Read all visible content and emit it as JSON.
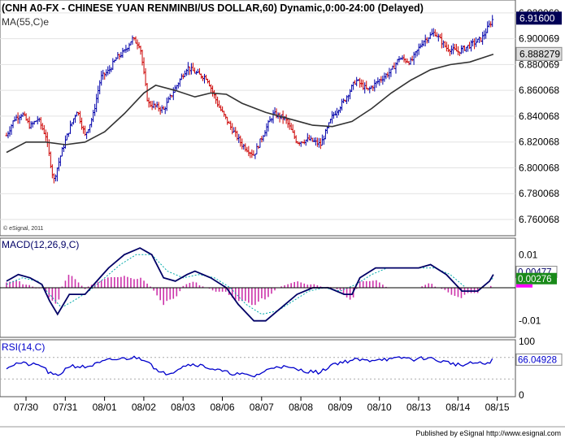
{
  "header": {
    "title": "(CNH A0-FX - CHINESE YUAN RENMINBI/US DOLLAR,60) Dynamic,0:00-24:00 (Delayed)",
    "ma_label": "MA(55,C)e",
    "copyright": "© eSignal, 2011"
  },
  "footer": {
    "published": "Published by eSignal http://www.esignal.com"
  },
  "colors": {
    "up_bar": "#0000aa",
    "down_bar": "#cc0000",
    "ma_line": "#333333",
    "macd_line": "#000066",
    "signal_line": "#00aaaa",
    "histogram": "#cc33aa",
    "rsi_line": "#0000cc",
    "last_price_box": "#000055",
    "macd_value_box": "#1a8a1a",
    "signal_marker": "#ff00ff"
  },
  "chart_data": [
    {
      "type": "candlestick",
      "panel": "price",
      "series_name": "CNH A0-FX",
      "x_ticks": [
        "07/30",
        "07/31",
        "08/01",
        "08/02",
        "08/03",
        "08/06",
        "08/07",
        "08/08",
        "08/09",
        "08/10",
        "08/13",
        "08/14",
        "08/15"
      ],
      "ylim": [
        6.75,
        6.925
      ],
      "y_ticks": [
        "6.760068",
        "6.780068",
        "6.800068",
        "6.820068",
        "6.840068",
        "6.860068",
        "6.880069",
        "6.900069",
        "6.920069"
      ],
      "last_price": "6.91600",
      "ma_value": "6.888279",
      "close_path": [
        [
          0,
          6.825
        ],
        [
          0.2,
          6.838
        ],
        [
          0.4,
          6.842
        ],
        [
          0.6,
          6.832
        ],
        [
          0.8,
          6.838
        ],
        [
          1.0,
          6.825
        ],
        [
          1.2,
          6.79
        ],
        [
          1.4,
          6.812
        ],
        [
          1.6,
          6.83
        ],
        [
          1.8,
          6.845
        ],
        [
          2.0,
          6.825
        ],
        [
          2.2,
          6.84
        ],
        [
          2.4,
          6.87
        ],
        [
          2.6,
          6.875
        ],
        [
          2.8,
          6.885
        ],
        [
          3.0,
          6.89
        ],
        [
          3.2,
          6.9
        ],
        [
          3.4,
          6.895
        ],
        [
          3.6,
          6.85
        ],
        [
          4.0,
          6.845
        ],
        [
          4.3,
          6.862
        ],
        [
          4.6,
          6.878
        ],
        [
          4.9,
          6.872
        ],
        [
          5.1,
          6.87
        ],
        [
          5.4,
          6.848
        ],
        [
          5.7,
          6.832
        ],
        [
          6.0,
          6.818
        ],
        [
          6.3,
          6.81
        ],
        [
          6.6,
          6.83
        ],
        [
          6.8,
          6.842
        ],
        [
          7.1,
          6.838
        ],
        [
          7.4,
          6.82
        ],
        [
          7.7,
          6.822
        ],
        [
          8.0,
          6.818
        ],
        [
          8.3,
          6.84
        ],
        [
          8.6,
          6.852
        ],
        [
          8.9,
          6.868
        ],
        [
          9.2,
          6.86
        ],
        [
          9.5,
          6.868
        ],
        [
          9.8,
          6.875
        ],
        [
          10.0,
          6.885
        ],
        [
          10.3,
          6.882
        ],
        [
          10.6,
          6.898
        ],
        [
          10.9,
          6.905
        ],
        [
          11.2,
          6.893
        ],
        [
          11.5,
          6.89
        ],
        [
          11.8,
          6.895
        ],
        [
          12.1,
          6.9
        ],
        [
          12.4,
          6.916
        ]
      ],
      "ma_path": [
        [
          0,
          6.812
        ],
        [
          0.5,
          6.82
        ],
        [
          1.0,
          6.82
        ],
        [
          1.5,
          6.818
        ],
        [
          2.0,
          6.82
        ],
        [
          2.5,
          6.828
        ],
        [
          3.0,
          6.842
        ],
        [
          3.5,
          6.858
        ],
        [
          3.8,
          6.864
        ],
        [
          4.3,
          6.86
        ],
        [
          4.8,
          6.855
        ],
        [
          5.2,
          6.858
        ],
        [
          5.6,
          6.857
        ],
        [
          6.0,
          6.85
        ],
        [
          6.6,
          6.843
        ],
        [
          7.2,
          6.838
        ],
        [
          7.8,
          6.833
        ],
        [
          8.3,
          6.832
        ],
        [
          8.8,
          6.836
        ],
        [
          9.3,
          6.846
        ],
        [
          9.8,
          6.858
        ],
        [
          10.3,
          6.868
        ],
        [
          10.8,
          6.876
        ],
        [
          11.3,
          6.88
        ],
        [
          11.8,
          6.882
        ],
        [
          12.4,
          6.888
        ]
      ]
    },
    {
      "type": "line",
      "panel": "macd",
      "label": "MACD(12,26,9,C)",
      "ylim": [
        -0.014,
        0.014
      ],
      "y_ticks": [
        "0.01",
        "-0.01"
      ],
      "macd_value": "0.00477",
      "signal_value": "0.00276",
      "macd": [
        [
          0,
          0.002
        ],
        [
          0.3,
          0.004
        ],
        [
          0.6,
          0.003
        ],
        [
          0.9,
          0.001
        ],
        [
          1.1,
          -0.004
        ],
        [
          1.3,
          -0.008
        ],
        [
          1.6,
          -0.002
        ],
        [
          2.0,
          -0.002
        ],
        [
          2.3,
          0.002
        ],
        [
          2.6,
          0.006
        ],
        [
          3.0,
          0.01
        ],
        [
          3.4,
          0.012
        ],
        [
          3.7,
          0.01
        ],
        [
          4.0,
          0.003
        ],
        [
          4.3,
          0.002
        ],
        [
          4.6,
          0.004
        ],
        [
          4.8,
          0.005
        ],
        [
          5.2,
          0.003
        ],
        [
          5.6,
          0.0
        ],
        [
          5.9,
          -0.005
        ],
        [
          6.3,
          -0.01
        ],
        [
          6.6,
          -0.01
        ],
        [
          7.0,
          -0.006
        ],
        [
          7.4,
          -0.002
        ],
        [
          7.8,
          0.0
        ],
        [
          8.2,
          0.0
        ],
        [
          8.6,
          -0.002
        ],
        [
          8.8,
          -0.002
        ],
        [
          9.0,
          0.003
        ],
        [
          9.4,
          0.006
        ],
        [
          9.8,
          0.006
        ],
        [
          10.1,
          0.006
        ],
        [
          10.5,
          0.006
        ],
        [
          10.8,
          0.007
        ],
        [
          11.2,
          0.004
        ],
        [
          11.6,
          -0.001
        ],
        [
          12.0,
          -0.001
        ],
        [
          12.3,
          0.002
        ],
        [
          12.4,
          0.004
        ]
      ],
      "signal": [
        [
          0,
          0.001
        ],
        [
          0.4,
          0.003
        ],
        [
          0.8,
          0.002
        ],
        [
          1.1,
          -0.002
        ],
        [
          1.4,
          -0.006
        ],
        [
          1.7,
          -0.004
        ],
        [
          2.1,
          -0.001
        ],
        [
          2.5,
          0.003
        ],
        [
          2.9,
          0.007
        ],
        [
          3.3,
          0.01
        ],
        [
          3.7,
          0.01
        ],
        [
          4.1,
          0.005
        ],
        [
          4.5,
          0.003
        ],
        [
          4.9,
          0.004
        ],
        [
          5.3,
          0.003
        ],
        [
          5.7,
          0.0
        ],
        [
          6.1,
          -0.005
        ],
        [
          6.5,
          -0.008
        ],
        [
          6.9,
          -0.007
        ],
        [
          7.3,
          -0.004
        ],
        [
          7.7,
          -0.001
        ],
        [
          8.1,
          0.0
        ],
        [
          8.5,
          -0.001
        ],
        [
          8.9,
          0.001
        ],
        [
          9.3,
          0.004
        ],
        [
          9.7,
          0.006
        ],
        [
          10.1,
          0.006
        ],
        [
          10.5,
          0.006
        ],
        [
          10.9,
          0.006
        ],
        [
          11.3,
          0.004
        ],
        [
          11.7,
          0.0
        ],
        [
          12.1,
          0.0
        ],
        [
          12.4,
          0.003
        ]
      ]
    },
    {
      "type": "line",
      "panel": "rsi",
      "label": "RSI(14,C)",
      "ylim": [
        0,
        100
      ],
      "y_ticks": [
        "0",
        "100"
      ],
      "rsi_value": "66.04928",
      "rsi": [
        [
          0,
          52
        ],
        [
          0.3,
          60
        ],
        [
          0.6,
          57
        ],
        [
          0.9,
          55
        ],
        [
          1.1,
          40
        ],
        [
          1.3,
          35
        ],
        [
          1.6,
          55
        ],
        [
          2.0,
          52
        ],
        [
          2.3,
          58
        ],
        [
          2.6,
          65
        ],
        [
          3.0,
          68
        ],
        [
          3.3,
          70
        ],
        [
          3.6,
          65
        ],
        [
          3.9,
          40
        ],
        [
          4.2,
          42
        ],
        [
          4.5,
          55
        ],
        [
          4.8,
          58
        ],
        [
          5.2,
          50
        ],
        [
          5.6,
          42
        ],
        [
          6.0,
          38
        ],
        [
          6.3,
          35
        ],
        [
          6.6,
          45
        ],
        [
          6.9,
          55
        ],
        [
          7.2,
          50
        ],
        [
          7.6,
          45
        ],
        [
          8.0,
          42
        ],
        [
          8.3,
          58
        ],
        [
          8.6,
          62
        ],
        [
          8.9,
          66
        ],
        [
          9.2,
          64
        ],
        [
          9.5,
          68
        ],
        [
          9.8,
          66
        ],
        [
          10.1,
          70
        ],
        [
          10.4,
          66
        ],
        [
          10.7,
          70
        ],
        [
          11.0,
          64
        ],
        [
          11.3,
          60
        ],
        [
          11.6,
          55
        ],
        [
          11.9,
          60
        ],
        [
          12.2,
          58
        ],
        [
          12.4,
          66
        ]
      ]
    }
  ]
}
